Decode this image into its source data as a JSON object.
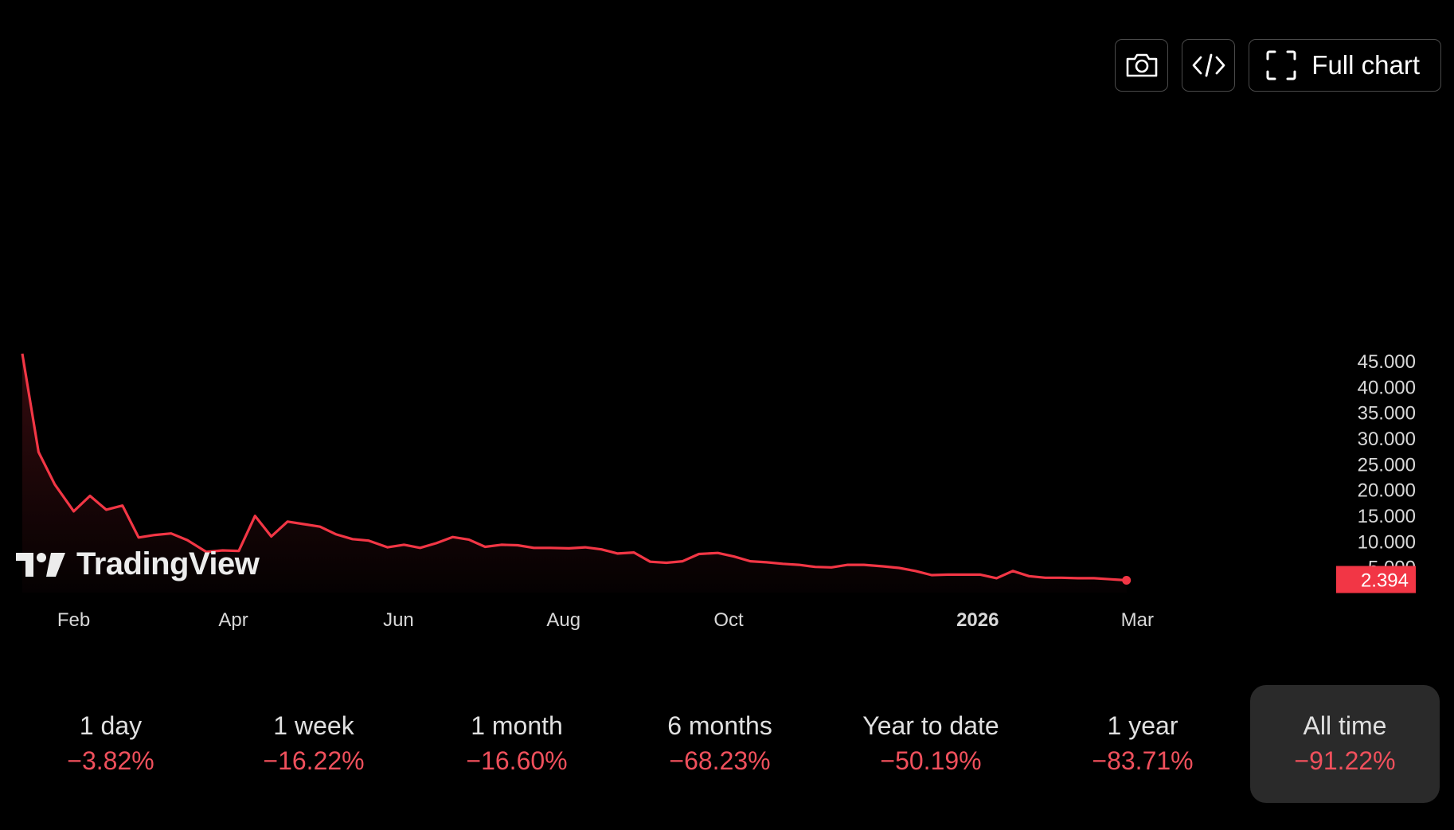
{
  "toolbar": {
    "snapshot_icon": "camera-icon",
    "embed_icon": "code-icon",
    "fullchart_icon": "fullscreen-icon",
    "fullchart_label": "Full chart"
  },
  "branding": {
    "logo_text": "TradingView"
  },
  "colors": {
    "line": "#f23645",
    "price_badge": "#f23645",
    "negative": "#f0505c",
    "background": "#000000"
  },
  "periods": [
    {
      "label": "1 day",
      "change": "−3.82%"
    },
    {
      "label": "1 week",
      "change": "−16.22%"
    },
    {
      "label": "1 month",
      "change": "−16.60%"
    },
    {
      "label": "6 months",
      "change": "−68.23%"
    },
    {
      "label": "Year to date",
      "change": "−50.19%"
    },
    {
      "label": "1 year",
      "change": "−83.71%"
    },
    {
      "label": "All time",
      "change": "−91.22%",
      "active": true
    }
  ],
  "chart_data": {
    "type": "area",
    "title": "",
    "xlabel": "",
    "ylabel": "",
    "last_price": "2.394",
    "ylim": [
      0,
      48000
    ],
    "y_ticks": [
      {
        "value": 45000,
        "label": "45.000"
      },
      {
        "value": 40000,
        "label": "40.000"
      },
      {
        "value": 35000,
        "label": "35.000"
      },
      {
        "value": 30000,
        "label": "30.000"
      },
      {
        "value": 25000,
        "label": "25.000"
      },
      {
        "value": 20000,
        "label": "20.000"
      },
      {
        "value": 15000,
        "label": "15.000"
      },
      {
        "value": 10000,
        "label": "10.000"
      },
      {
        "value": 5000,
        "label": "5.000"
      }
    ],
    "x_ticks": [
      {
        "date": "2025-02-01",
        "label": "Feb"
      },
      {
        "date": "2025-04-01",
        "label": "Apr"
      },
      {
        "date": "2025-06-01",
        "label": "Jun"
      },
      {
        "date": "2025-08-01",
        "label": "Aug"
      },
      {
        "date": "2025-10-01",
        "label": "Oct"
      },
      {
        "date": "2026-01-01",
        "label": "2026",
        "bold": true
      },
      {
        "date": "2026-03-01",
        "label": "Mar"
      }
    ],
    "x_range": [
      "2025-01-13",
      "2026-05-07"
    ],
    "series": [
      {
        "points": [
          [
            "2025-01-13",
            46400
          ],
          [
            "2025-01-19",
            27300
          ],
          [
            "2025-01-25",
            21000
          ],
          [
            "2025-02-01",
            15800
          ],
          [
            "2025-02-07",
            18800
          ],
          [
            "2025-02-13",
            16100
          ],
          [
            "2025-02-19",
            16900
          ],
          [
            "2025-02-25",
            10700
          ],
          [
            "2025-03-03",
            11200
          ],
          [
            "2025-03-09",
            11500
          ],
          [
            "2025-03-15",
            10200
          ],
          [
            "2025-03-22",
            7900
          ],
          [
            "2025-03-28",
            8200
          ],
          [
            "2025-04-03",
            8100
          ],
          [
            "2025-04-09",
            14900
          ],
          [
            "2025-04-15",
            10900
          ],
          [
            "2025-04-21",
            13800
          ],
          [
            "2025-04-27",
            13300
          ],
          [
            "2025-05-03",
            12800
          ],
          [
            "2025-05-09",
            11300
          ],
          [
            "2025-05-15",
            10400
          ],
          [
            "2025-05-21",
            10100
          ],
          [
            "2025-05-28",
            8800
          ],
          [
            "2025-06-03",
            9300
          ],
          [
            "2025-06-09",
            8700
          ],
          [
            "2025-06-15",
            9600
          ],
          [
            "2025-06-21",
            10800
          ],
          [
            "2025-06-27",
            10300
          ],
          [
            "2025-07-03",
            8900
          ],
          [
            "2025-07-09",
            9300
          ],
          [
            "2025-07-15",
            9200
          ],
          [
            "2025-07-21",
            8700
          ],
          [
            "2025-07-27",
            8700
          ],
          [
            "2025-08-03",
            8600
          ],
          [
            "2025-08-09",
            8800
          ],
          [
            "2025-08-15",
            8400
          ],
          [
            "2025-08-21",
            7600
          ],
          [
            "2025-08-27",
            7800
          ],
          [
            "2025-09-02",
            6000
          ],
          [
            "2025-09-08",
            5800
          ],
          [
            "2025-09-14",
            6100
          ],
          [
            "2025-09-20",
            7500
          ],
          [
            "2025-09-27",
            7700
          ],
          [
            "2025-10-03",
            7000
          ],
          [
            "2025-10-09",
            6100
          ],
          [
            "2025-10-15",
            5900
          ],
          [
            "2025-10-21",
            5600
          ],
          [
            "2025-10-27",
            5400
          ],
          [
            "2025-11-02",
            5000
          ],
          [
            "2025-11-08",
            4900
          ],
          [
            "2025-11-14",
            5400
          ],
          [
            "2025-11-20",
            5400
          ],
          [
            "2025-11-27",
            5100
          ],
          [
            "2025-12-03",
            4800
          ],
          [
            "2025-12-09",
            4200
          ],
          [
            "2025-12-15",
            3400
          ],
          [
            "2025-12-21",
            3500
          ],
          [
            "2025-12-27",
            3500
          ],
          [
            "2026-01-02",
            3500
          ],
          [
            "2026-01-08",
            2800
          ],
          [
            "2026-01-14",
            4200
          ],
          [
            "2026-01-20",
            3200
          ],
          [
            "2026-01-26",
            2900
          ],
          [
            "2026-02-01",
            2900
          ],
          [
            "2026-02-07",
            2800
          ],
          [
            "2026-02-13",
            2800
          ],
          [
            "2026-02-19",
            2600
          ],
          [
            "2026-02-25",
            2394
          ]
        ]
      }
    ],
    "grid": false,
    "legend": "none"
  }
}
